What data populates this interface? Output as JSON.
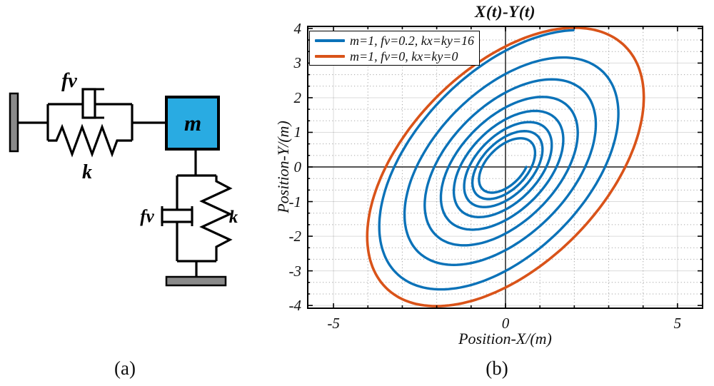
{
  "figure": {
    "captions": {
      "a": "(a)",
      "b": "(b)"
    }
  },
  "diagram": {
    "labels": {
      "damper_top": "fv",
      "spring_top": "k",
      "mass": "m",
      "damper_side": "fv",
      "spring_side": "k"
    },
    "mass_color": "#29ABE2",
    "wall_color": "#8a8a8a",
    "ground_color": "#8a8a8a",
    "line_color": "#000000"
  },
  "chart_data": {
    "type": "line",
    "title": "X(t)-Y(t)",
    "xlabel": "Position-X/(m)",
    "ylabel": "Position-Y/(m)",
    "xlim": [
      -5.77,
      5.75
    ],
    "ylim": [
      -4.1,
      4.08
    ],
    "xticks": [
      -5,
      0,
      5
    ],
    "yticks": [
      4,
      3,
      2,
      1,
      0,
      -1,
      -2,
      -3,
      -4
    ],
    "grid": {
      "minor": true,
      "x_minor_step": 1,
      "y_minor_step": 0.3333,
      "zero_lines": true,
      "minor_color": "rgba(0,0,0,0.35)",
      "major_color": "rgba(0,0,0,0.14)",
      "zero_color": "#3c3c3c"
    },
    "legend_position": "top-left",
    "series": [
      {
        "name": "m=1, fv=0.2, kx=ky=16",
        "color": "#0b72b8",
        "model": "damped_orbit",
        "amplitude_start": 3.95,
        "phase_deg": 60,
        "decay_per_turn": 0.8,
        "start_angle_deg": 60,
        "turns": 7.75
      },
      {
        "name": "m=1, fv=0, kx=ky=0",
        "color": "#d95319",
        "model": "ellipse",
        "amplitude": 4.02,
        "phase_deg": 60
      }
    ]
  }
}
